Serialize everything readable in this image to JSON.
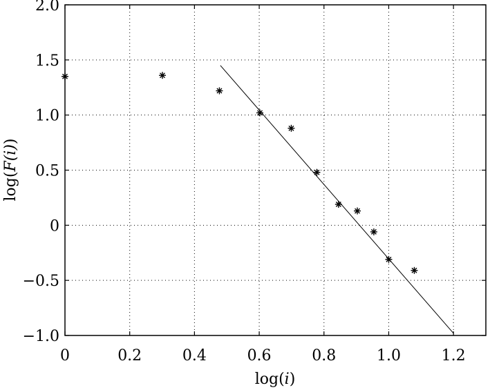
{
  "chart_data": {
    "type": "scatter",
    "title": "",
    "xlabel": {
      "prefix": "log(",
      "var": "i",
      "suffix": ")"
    },
    "ylabel": {
      "prefix": "log(",
      "var": "F(i)",
      "suffix": ")"
    },
    "xlim": [
      0,
      1.3
    ],
    "ylim": [
      -1.0,
      2.0
    ],
    "grid": true,
    "xticks": [
      0,
      0.2,
      0.4,
      0.6,
      0.8,
      1.0,
      1.2
    ],
    "xtick_labels": [
      "0",
      "0.2",
      "0.4",
      "0.6",
      "0.8",
      "1.0",
      "1.2"
    ],
    "yticks": [
      2.0,
      1.5,
      1.0,
      0.5,
      0,
      -0.5,
      -1.0
    ],
    "ytick_labels": [
      "2.0",
      "1.5",
      "1.0",
      "0.5",
      "0",
      "−0.5",
      "−1.0"
    ],
    "points": [
      {
        "x": 0.0,
        "y": 1.35
      },
      {
        "x": 0.301,
        "y": 1.36
      },
      {
        "x": 0.477,
        "y": 1.22
      },
      {
        "x": 0.602,
        "y": 1.02
      },
      {
        "x": 0.699,
        "y": 0.88
      },
      {
        "x": 0.778,
        "y": 0.48
      },
      {
        "x": 0.845,
        "y": 0.19
      },
      {
        "x": 0.903,
        "y": 0.13
      },
      {
        "x": 0.954,
        "y": -0.06
      },
      {
        "x": 1.0,
        "y": -0.31
      },
      {
        "x": 1.079,
        "y": -0.41
      }
    ],
    "fit_line": {
      "x": [
        0.48,
        1.2
      ],
      "y": [
        1.45,
        -0.98
      ]
    }
  }
}
